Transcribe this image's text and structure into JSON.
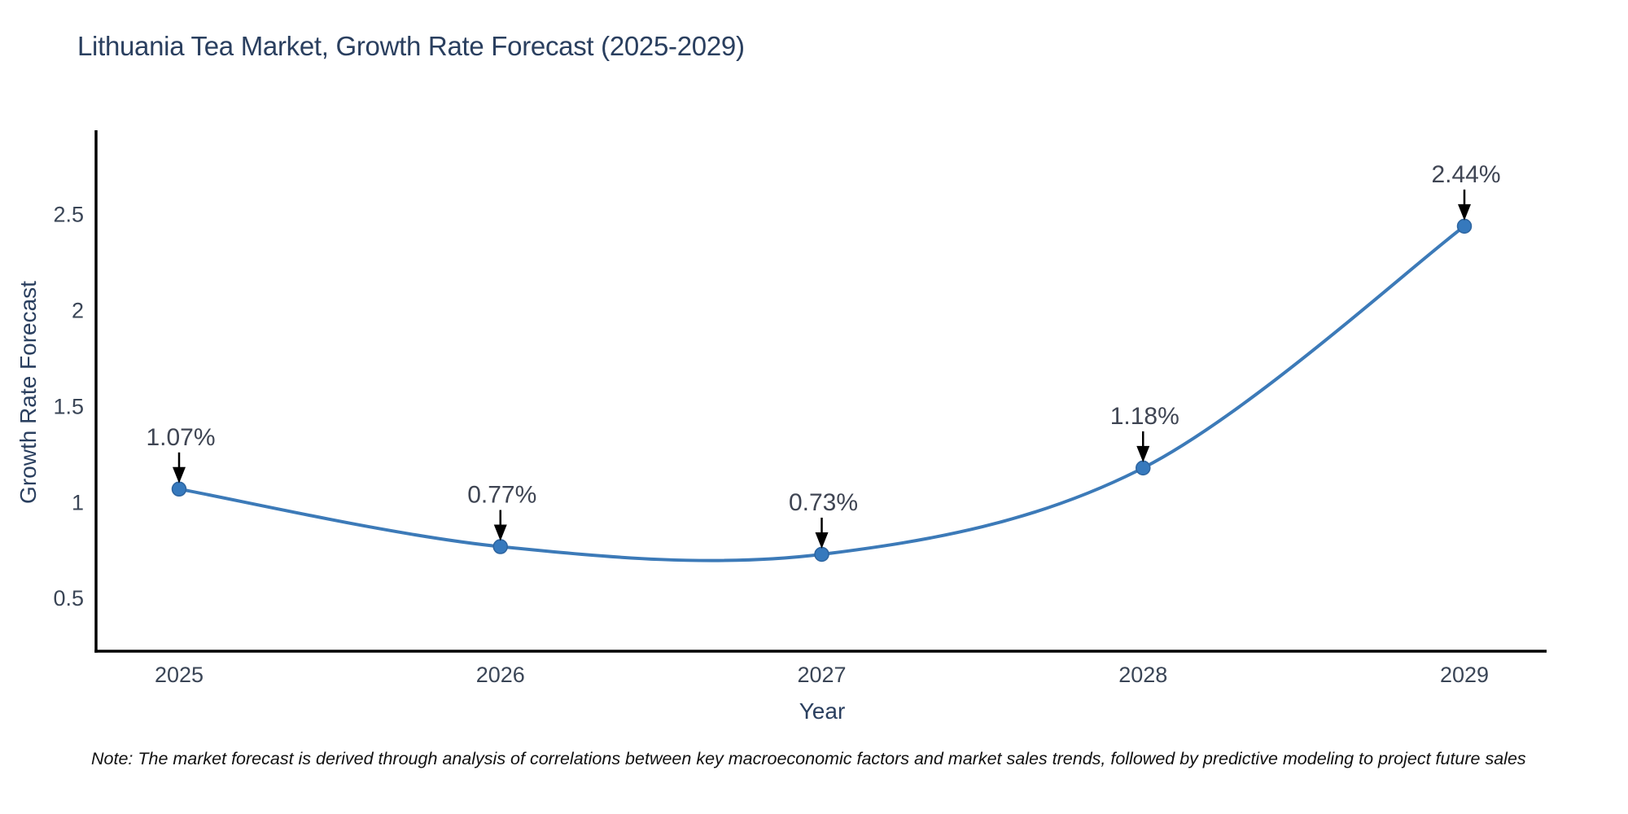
{
  "note": "Note: The market forecast is derived through analysis of correlations between key macroeconomic factors and market sales trends, followed by predictive modeling to project future sales",
  "chart_data": {
    "type": "line",
    "title": "Lithuania Tea Market, Growth Rate Forecast (2025-2029)",
    "xlabel": "Year",
    "ylabel": "Growth Rate Forecast",
    "x": [
      2025,
      2026,
      2027,
      2028,
      2029
    ],
    "xtick_labels": [
      "2025",
      "2026",
      "2027",
      "2028",
      "2029"
    ],
    "series": [
      {
        "name": "Growth Rate Forecast",
        "values": [
          1.07,
          0.77,
          0.73,
          1.18,
          2.44
        ]
      }
    ],
    "point_labels": [
      "1.07%",
      "0.77%",
      "0.73%",
      "1.18%",
      "2.44%"
    ],
    "yticks": [
      0.5,
      1,
      1.5,
      2,
      2.5
    ],
    "ytick_labels": [
      "0.5",
      "1",
      "1.5",
      "2",
      "2.5"
    ],
    "ylim": [
      0.225,
      2.94
    ],
    "grid": false,
    "legend": "none",
    "smooth": true,
    "annotations": "value labels with downward arrows above each point"
  },
  "colors": {
    "line": "#3c7ab8",
    "marker_fill": "#3679bd",
    "marker_edge": "#2d649f",
    "axis": "#000000",
    "arrow": "#000000",
    "tick_text": "#3a4556",
    "annotation_text": "#3f4553",
    "title_text": "#2a3f5f",
    "background": "#ffffff"
  }
}
